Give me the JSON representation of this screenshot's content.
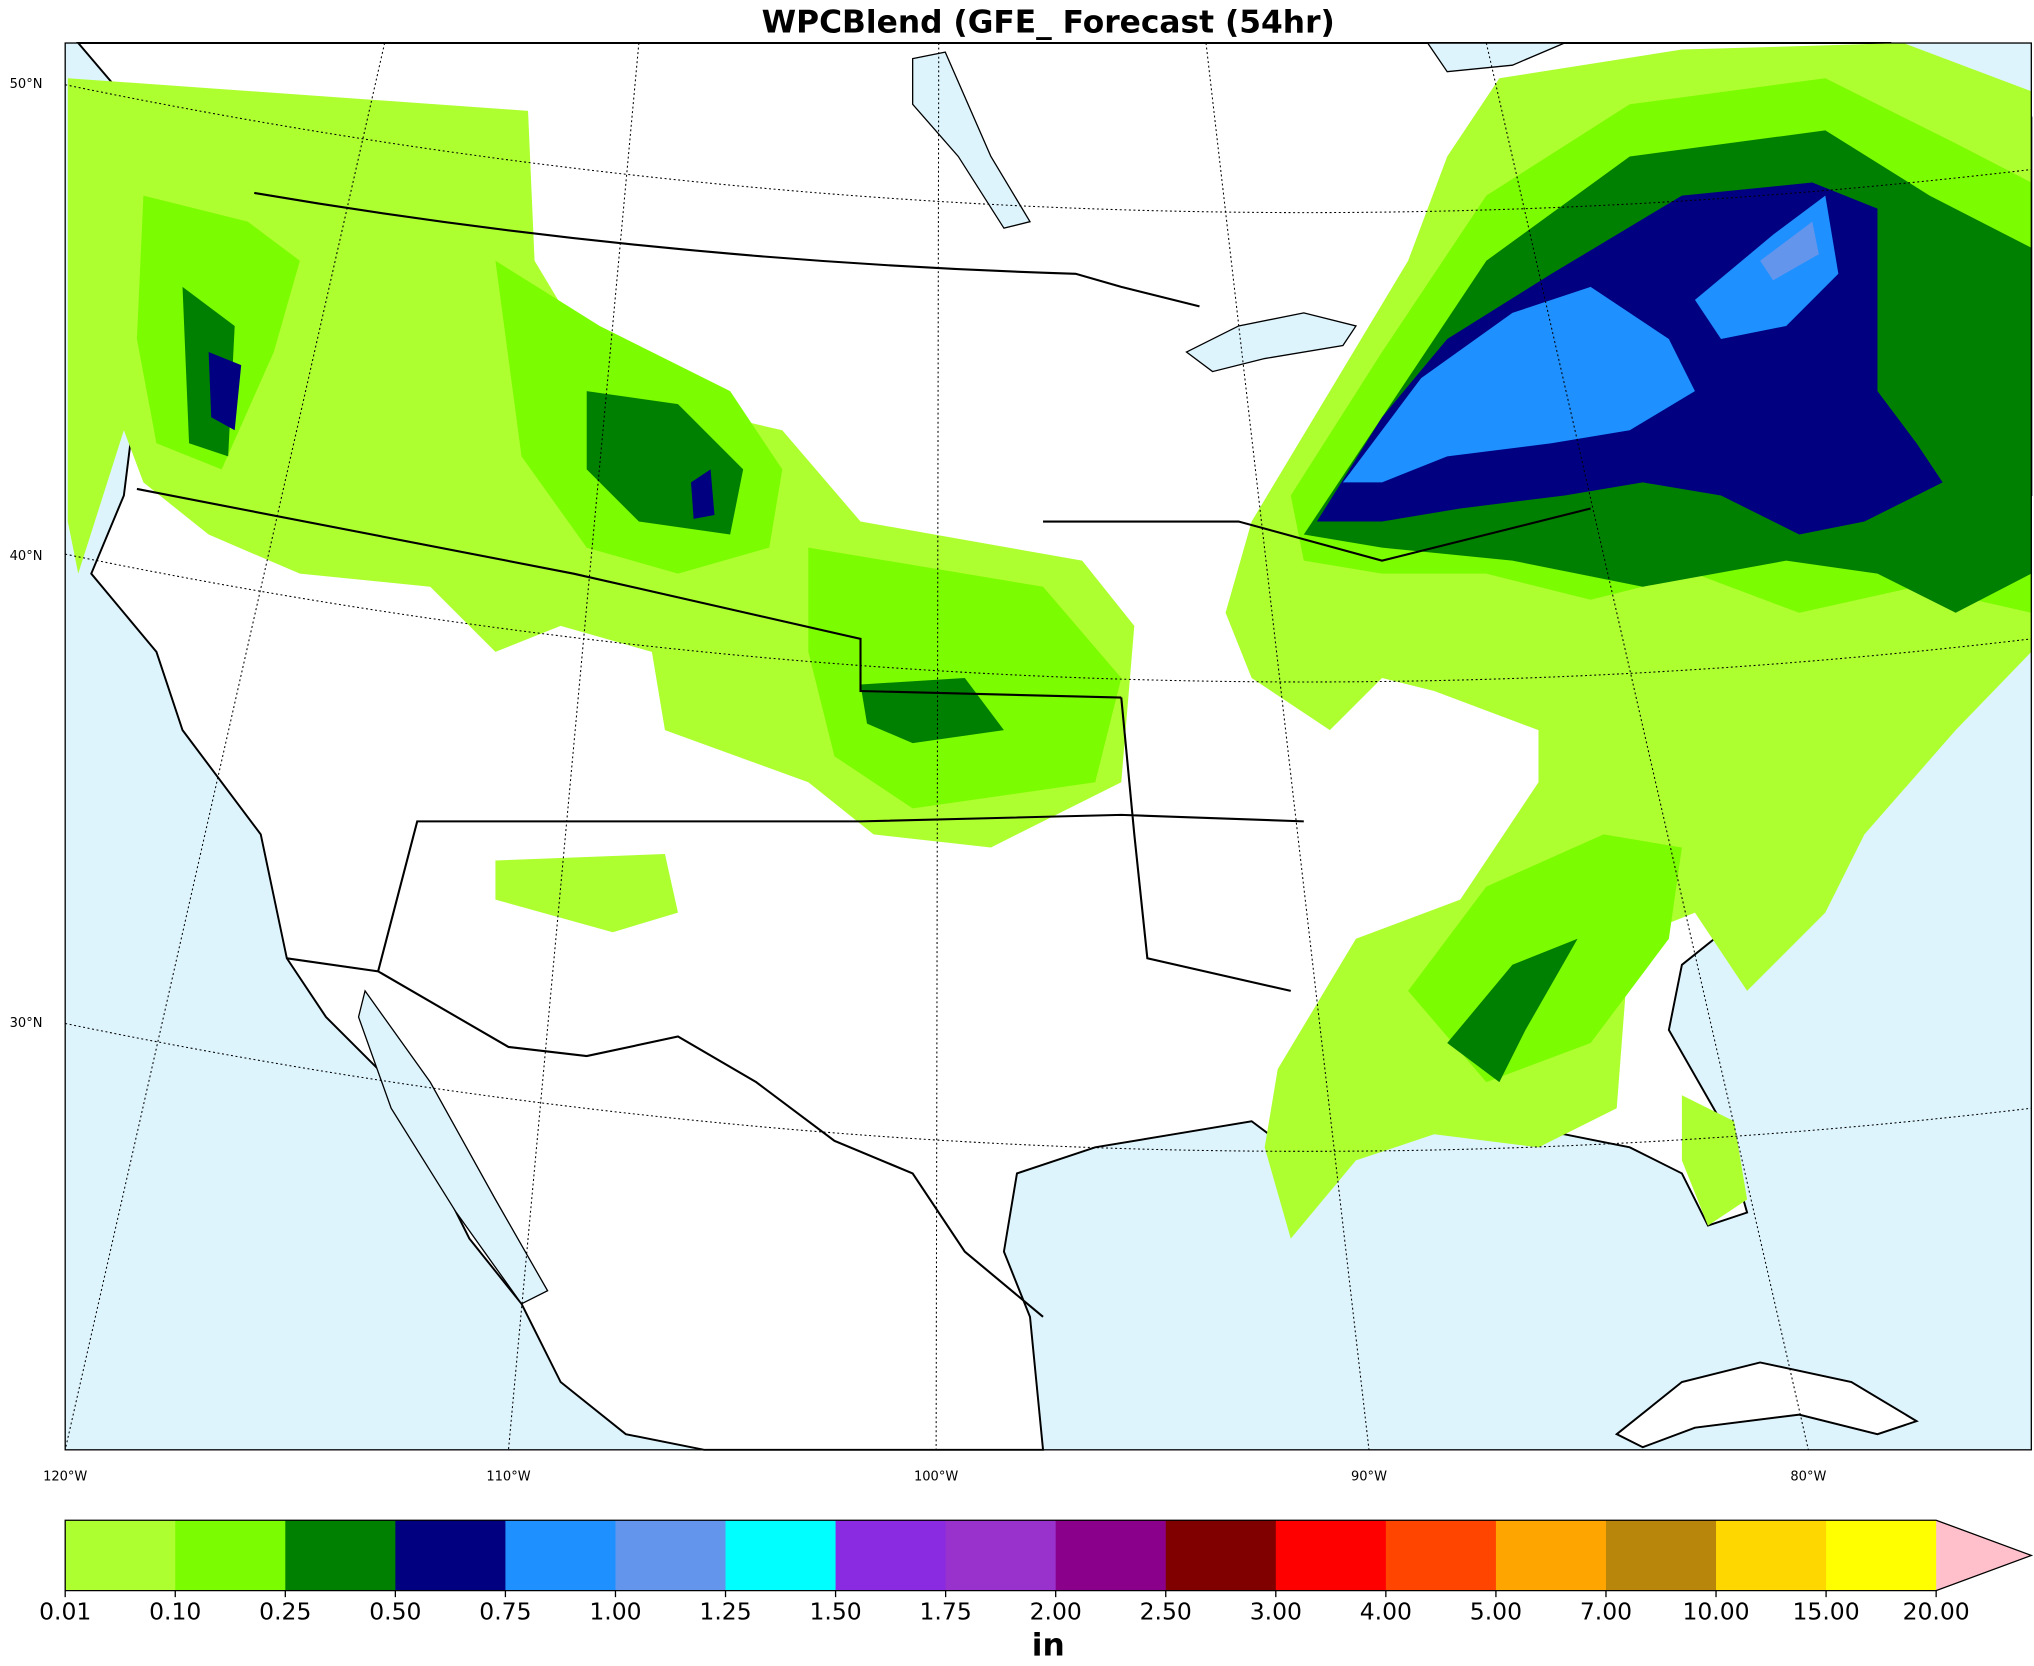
{
  "title": "WPCBlend (GFE_ Forecast (54hr)",
  "lat_labels": [
    "50°N",
    "40°N",
    "30°N"
  ],
  "lon_labels": [
    "120°W",
    "110°W",
    "100°W",
    "90°W",
    "80°W"
  ],
  "colorbar": {
    "unit": "in",
    "labels": [
      "0.01",
      "0.10",
      "0.25",
      "0.50",
      "0.75",
      "1.00",
      "1.25",
      "1.50",
      "1.75",
      "2.00",
      "2.50",
      "3.00",
      "4.00",
      "5.00",
      "7.00",
      "10.00",
      "15.00",
      "20.00"
    ],
    "colors": [
      "#adff2f",
      "#7cfc00",
      "#008000",
      "#000080",
      "#1e90ff",
      "#6495ed",
      "#00ffff",
      "#8a2be2",
      "#9932cc",
      "#8b008b",
      "#800000",
      "#ff0000",
      "#ff4500",
      "#ffa500",
      "#b8860b",
      "#ffd700",
      "#ffff00"
    ],
    "extend_color": "#ffc0cb"
  }
}
